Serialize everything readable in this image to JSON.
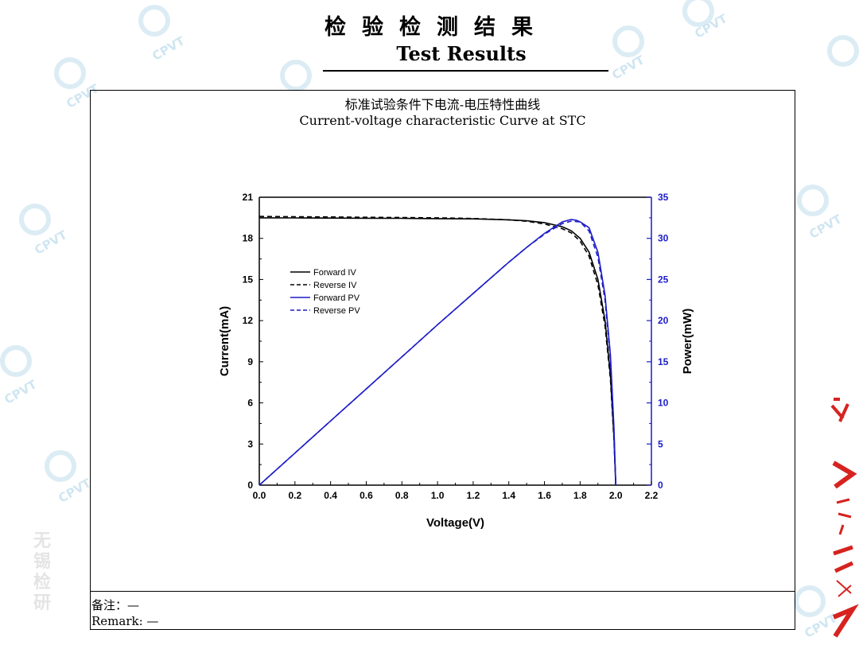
{
  "header": {
    "title_cn": "检验检测结果",
    "title_en": "Test Results"
  },
  "watermark": {
    "text": "CPVT",
    "side_text": "无锡检研"
  },
  "remark": {
    "label_cn": "备注：—",
    "label_en": "Remark: —"
  },
  "chart_data": {
    "type": "line",
    "title": "标准试验条件下电流-电压特性曲线",
    "subtitle": "Current-voltage characteristic Curve at STC",
    "xlabel": "Voltage(V)",
    "ylabel": "Current(mA)",
    "y2label": "Power(mW)",
    "xlim": [
      0.0,
      2.2
    ],
    "ylim": [
      0,
      21
    ],
    "y2lim": [
      0,
      35
    ],
    "xticks": [
      "0.0",
      "0.2",
      "0.4",
      "0.6",
      "0.8",
      "1.0",
      "1.2",
      "1.4",
      "1.6",
      "1.8",
      "2.0",
      "2.2"
    ],
    "yticks": [
      "0",
      "3",
      "6",
      "9",
      "12",
      "15",
      "18",
      "21"
    ],
    "y2ticks": [
      "0",
      "5",
      "10",
      "15",
      "20",
      "25",
      "30",
      "35"
    ],
    "legend_position": "left-middle",
    "colors": {
      "iv": "#000000",
      "pv": "#1c1cc8",
      "right_axis": "#1c1cc8"
    },
    "series": [
      {
        "name": "Forward IV",
        "axis": "left",
        "style": "solid",
        "color": "#000000",
        "x": [
          0.0,
          0.2,
          0.4,
          0.6,
          0.8,
          1.0,
          1.2,
          1.4,
          1.5,
          1.6,
          1.7,
          1.75,
          1.8,
          1.85,
          1.9,
          1.94,
          1.97,
          1.99,
          2.0
        ],
        "y": [
          19.5,
          19.49,
          19.48,
          19.47,
          19.46,
          19.44,
          19.42,
          19.35,
          19.28,
          19.15,
          18.85,
          18.55,
          18.0,
          17.0,
          15.0,
          12.0,
          8.0,
          3.5,
          0.0
        ]
      },
      {
        "name": "Reverse IV",
        "axis": "left",
        "style": "dashed",
        "color": "#000000",
        "x": [
          0.0,
          0.2,
          0.4,
          0.6,
          0.8,
          1.0,
          1.2,
          1.4,
          1.5,
          1.6,
          1.7,
          1.75,
          1.8,
          1.85,
          1.9,
          1.94,
          1.97,
          1.99,
          2.0
        ],
        "y": [
          19.6,
          19.58,
          19.56,
          19.54,
          19.52,
          19.5,
          19.45,
          19.35,
          19.25,
          19.05,
          18.7,
          18.4,
          17.8,
          16.7,
          14.6,
          11.6,
          7.7,
          3.3,
          0.0
        ]
      },
      {
        "name": "Forward PV",
        "axis": "right",
        "style": "solid",
        "color": "#1c1cc8",
        "x": [
          0.0,
          0.2,
          0.4,
          0.6,
          0.8,
          1.0,
          1.2,
          1.4,
          1.5,
          1.6,
          1.7,
          1.75,
          1.78,
          1.8,
          1.85,
          1.9,
          1.94,
          1.97,
          1.99,
          2.0
        ],
        "y": [
          0.0,
          3.9,
          7.8,
          11.7,
          15.6,
          19.5,
          23.3,
          27.1,
          28.9,
          30.6,
          32.0,
          32.3,
          32.2,
          32.0,
          31.3,
          28.3,
          23.1,
          15.8,
          7.0,
          0.0
        ]
      },
      {
        "name": "Reverse PV",
        "axis": "right",
        "style": "dashed",
        "color": "#1c1cc8",
        "x": [
          0.0,
          0.2,
          0.4,
          0.6,
          0.8,
          1.0,
          1.2,
          1.4,
          1.5,
          1.6,
          1.7,
          1.75,
          1.8,
          1.85,
          1.9,
          1.94,
          1.97,
          1.99,
          2.0
        ],
        "y": [
          0.0,
          3.9,
          7.8,
          11.7,
          15.6,
          19.5,
          23.3,
          27.1,
          28.9,
          30.5,
          31.8,
          32.1,
          32.0,
          30.9,
          27.7,
          22.5,
          15.2,
          6.6,
          0.0
        ]
      }
    ]
  }
}
